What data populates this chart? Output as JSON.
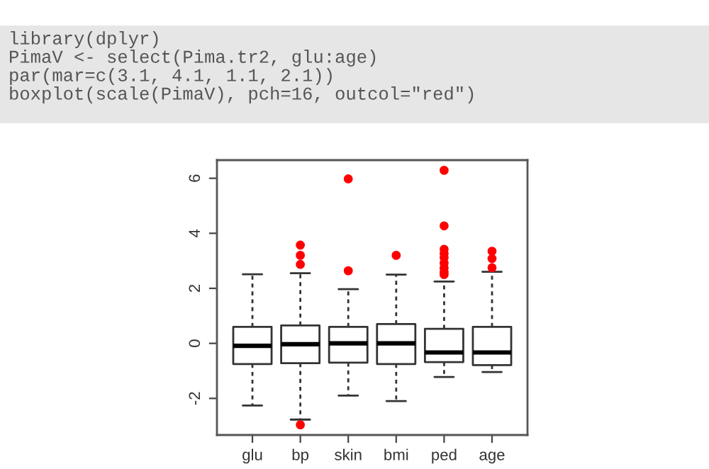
{
  "chart_data": {
    "type": "box",
    "categories": [
      "glu",
      "bp",
      "skin",
      "bmi",
      "ped",
      "age"
    ],
    "boxes": [
      {
        "low": -2.26,
        "q1": -0.75,
        "median": -0.09,
        "q3": 0.6,
        "high": 2.51
      },
      {
        "low": -2.77,
        "q1": -0.72,
        "median": -0.03,
        "q3": 0.65,
        "high": 2.55,
        "outliers": [
          3.57,
          3.2,
          2.87,
          -2.96
        ]
      },
      {
        "low": -1.9,
        "q1": -0.7,
        "median": 0.0,
        "q3": 0.6,
        "high": 1.97,
        "outliers": [
          5.98,
          2.64
        ]
      },
      {
        "low": -2.1,
        "q1": -0.75,
        "median": 0.0,
        "q3": 0.7,
        "high": 2.5,
        "outliers": [
          3.2
        ]
      },
      {
        "low": -1.22,
        "q1": -0.68,
        "median": -0.33,
        "q3": 0.53,
        "high": 2.25,
        "outliers": [
          6.29,
          4.27,
          3.42,
          3.27,
          3.12,
          2.92,
          2.74,
          2.6,
          2.5
        ]
      },
      {
        "low": -1.04,
        "q1": -0.79,
        "median": -0.33,
        "q3": 0.6,
        "high": 2.6,
        "outliers": [
          3.35,
          3.08,
          2.75
        ]
      }
    ],
    "ylim": [
      -3.33,
      6.66
    ],
    "yticks": [
      -2,
      0,
      2,
      4,
      6
    ],
    "marker": "circle",
    "grid": false,
    "annotations": [
      "library(dplyr)",
      "PimaV <- select(Pima.tr2, glu:age)",
      "par(mar=c(3.1, 4.1, 1.1, 2.1))",
      "boxplot(scale(PimaV), pch=16, outcol=\"red\")"
    ]
  }
}
